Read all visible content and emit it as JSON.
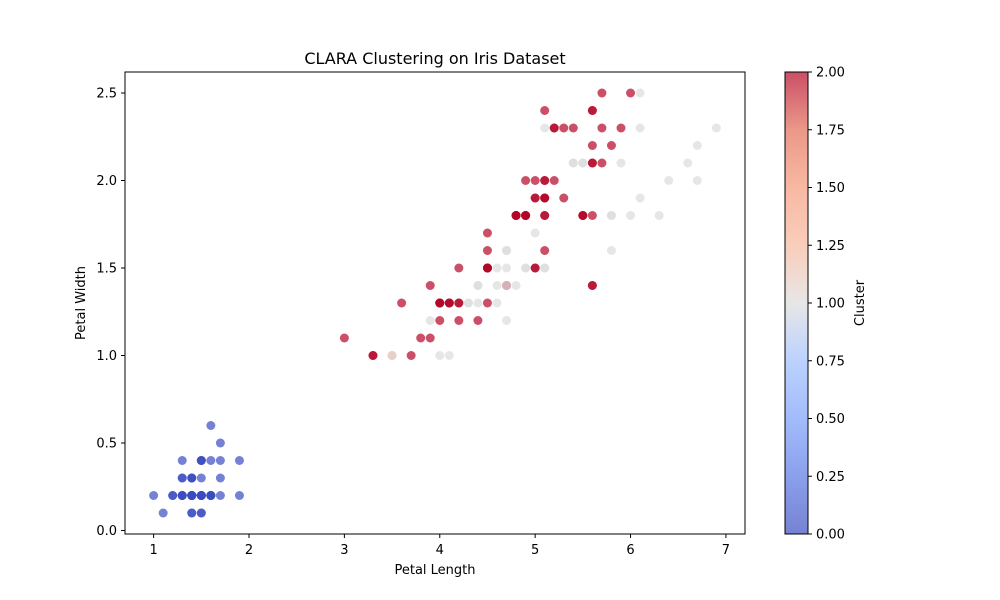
{
  "chart_data": {
    "type": "scatter",
    "title": "CLARA Clustering on Iris Dataset",
    "xlabel": "Petal Length",
    "ylabel": "Petal Width",
    "xlim": [
      0.7,
      7.2
    ],
    "ylim": [
      -0.02,
      2.62
    ],
    "xticks": [
      1,
      2,
      3,
      4,
      5,
      6,
      7
    ],
    "yticks": [
      0.0,
      0.5,
      1.0,
      1.5,
      2.0,
      2.5
    ],
    "grid": false,
    "colormap": "coolwarm",
    "colorbar": {
      "label": "Cluster",
      "range": [
        0.0,
        2.0
      ],
      "ticks": [
        0.0,
        0.25,
        0.5,
        0.75,
        1.0,
        1.25,
        1.5,
        1.75,
        2.0
      ],
      "tick_labels": [
        "0.00",
        "0.25",
        "0.50",
        "0.75",
        "1.00",
        "1.25",
        "1.50",
        "1.75",
        "2.00"
      ]
    },
    "marker_alpha": 0.7,
    "points": [
      [
        1.4,
        0.2,
        0
      ],
      [
        1.4,
        0.2,
        0
      ],
      [
        1.3,
        0.2,
        0
      ],
      [
        1.5,
        0.2,
        0
      ],
      [
        1.4,
        0.2,
        0
      ],
      [
        1.7,
        0.4,
        0
      ],
      [
        1.4,
        0.3,
        0
      ],
      [
        1.5,
        0.2,
        0
      ],
      [
        1.4,
        0.2,
        0
      ],
      [
        1.5,
        0.1,
        0
      ],
      [
        1.5,
        0.2,
        0
      ],
      [
        1.6,
        0.2,
        0
      ],
      [
        1.4,
        0.1,
        0
      ],
      [
        1.1,
        0.1,
        0
      ],
      [
        1.2,
        0.2,
        0
      ],
      [
        1.5,
        0.4,
        0
      ],
      [
        1.3,
        0.4,
        0
      ],
      [
        1.4,
        0.3,
        0
      ],
      [
        1.7,
        0.3,
        0
      ],
      [
        1.5,
        0.3,
        0
      ],
      [
        1.7,
        0.2,
        0
      ],
      [
        1.5,
        0.4,
        0
      ],
      [
        1.0,
        0.2,
        0
      ],
      [
        1.7,
        0.5,
        0
      ],
      [
        1.9,
        0.2,
        0
      ],
      [
        1.6,
        0.2,
        0
      ],
      [
        1.6,
        0.4,
        0
      ],
      [
        1.5,
        0.2,
        0
      ],
      [
        1.4,
        0.2,
        0
      ],
      [
        1.6,
        0.2,
        0
      ],
      [
        1.6,
        0.2,
        0
      ],
      [
        1.5,
        0.4,
        0
      ],
      [
        1.5,
        0.1,
        0
      ],
      [
        1.4,
        0.2,
        0
      ],
      [
        1.5,
        0.2,
        0
      ],
      [
        1.2,
        0.2,
        0
      ],
      [
        1.3,
        0.2,
        0
      ],
      [
        1.4,
        0.1,
        0
      ],
      [
        1.3,
        0.2,
        0
      ],
      [
        1.5,
        0.2,
        0
      ],
      [
        1.3,
        0.3,
        0
      ],
      [
        1.3,
        0.3,
        0
      ],
      [
        1.3,
        0.2,
        0
      ],
      [
        1.6,
        0.6,
        0
      ],
      [
        1.9,
        0.4,
        0
      ],
      [
        1.4,
        0.3,
        0
      ],
      [
        1.6,
        0.2,
        0
      ],
      [
        1.4,
        0.2,
        0
      ],
      [
        1.5,
        0.2,
        0
      ],
      [
        1.4,
        0.2,
        0
      ],
      [
        4.7,
        1.4,
        2
      ],
      [
        4.5,
        1.5,
        2
      ],
      [
        4.9,
        1.5,
        1
      ],
      [
        4.0,
        1.3,
        2
      ],
      [
        4.6,
        1.5,
        1
      ],
      [
        4.5,
        1.3,
        2
      ],
      [
        4.7,
        1.6,
        1
      ],
      [
        3.3,
        1.0,
        2
      ],
      [
        4.6,
        1.3,
        1
      ],
      [
        3.9,
        1.4,
        2
      ],
      [
        3.5,
        1.0,
        1.5
      ],
      [
        4.2,
        1.5,
        2
      ],
      [
        4.0,
        1.0,
        1
      ],
      [
        4.7,
        1.4,
        1
      ],
      [
        3.6,
        1.3,
        2
      ],
      [
        4.4,
        1.4,
        1
      ],
      [
        4.5,
        1.5,
        2
      ],
      [
        4.1,
        1.0,
        1
      ],
      [
        4.5,
        1.5,
        1
      ],
      [
        3.9,
        1.1,
        2
      ],
      [
        4.8,
        1.8,
        2
      ],
      [
        4.0,
        1.3,
        2
      ],
      [
        4.9,
        1.5,
        1
      ],
      [
        4.7,
        1.2,
        1
      ],
      [
        4.3,
        1.3,
        1
      ],
      [
        4.4,
        1.4,
        1
      ],
      [
        4.8,
        1.4,
        1
      ],
      [
        5.0,
        1.7,
        1
      ],
      [
        4.5,
        1.5,
        2
      ],
      [
        3.5,
        1.0,
        1
      ],
      [
        3.8,
        1.1,
        2
      ],
      [
        3.7,
        1.0,
        2
      ],
      [
        3.9,
        1.2,
        1
      ],
      [
        5.1,
        1.6,
        2
      ],
      [
        4.5,
        1.5,
        2
      ],
      [
        4.5,
        1.6,
        2
      ],
      [
        4.7,
        1.5,
        1
      ],
      [
        4.4,
        1.3,
        1
      ],
      [
        4.1,
        1.3,
        2
      ],
      [
        4.0,
        1.3,
        2
      ],
      [
        4.4,
        1.2,
        2
      ],
      [
        4.6,
        1.4,
        1
      ],
      [
        4.0,
        1.2,
        2
      ],
      [
        3.3,
        1.0,
        2
      ],
      [
        4.2,
        1.3,
        2
      ],
      [
        4.2,
        1.2,
        2
      ],
      [
        4.2,
        1.3,
        2
      ],
      [
        4.3,
        1.3,
        1
      ],
      [
        3.0,
        1.1,
        2
      ],
      [
        4.1,
        1.3,
        2
      ],
      [
        4.5,
        1.7,
        2
      ],
      [
        4.9,
        1.8,
        2
      ],
      [
        4.8,
        1.8,
        2
      ],
      [
        5.0,
        1.5,
        2
      ],
      [
        5.1,
        1.5,
        1
      ],
      [
        5.6,
        1.4,
        2
      ],
      [
        5.1,
        1.8,
        2
      ],
      [
        5.0,
        1.9,
        2
      ],
      [
        5.1,
        1.9,
        2
      ],
      [
        5.5,
        1.8,
        2
      ],
      [
        6.0,
        2.5,
        2
      ],
      [
        5.1,
        1.9,
        2
      ],
      [
        5.9,
        2.1,
        1
      ],
      [
        5.6,
        1.8,
        2
      ],
      [
        5.8,
        2.2,
        2
      ],
      [
        6.6,
        2.1,
        1
      ],
      [
        5.8,
        1.8,
        1
      ],
      [
        6.3,
        1.8,
        1
      ],
      [
        5.8,
        1.8,
        1
      ],
      [
        6.1,
        2.5,
        1
      ],
      [
        5.1,
        2.0,
        2
      ],
      [
        5.3,
        1.9,
        2
      ],
      [
        5.5,
        2.1,
        1
      ],
      [
        5.0,
        2.0,
        2
      ],
      [
        5.1,
        2.4,
        2
      ],
      [
        5.3,
        2.3,
        2
      ],
      [
        5.5,
        1.8,
        2
      ],
      [
        6.7,
        2.2,
        1
      ],
      [
        6.9,
        2.3,
        1
      ],
      [
        5.0,
        1.5,
        2
      ],
      [
        5.7,
        2.3,
        2
      ],
      [
        4.9,
        2.0,
        2
      ],
      [
        6.7,
        2.0,
        1
      ],
      [
        4.9,
        1.8,
        2
      ],
      [
        5.7,
        2.1,
        2
      ],
      [
        6.0,
        1.8,
        1
      ],
      [
        4.8,
        1.8,
        2
      ],
      [
        4.9,
        1.8,
        2
      ],
      [
        5.6,
        2.1,
        2
      ],
      [
        5.8,
        1.6,
        1
      ],
      [
        6.1,
        1.9,
        1
      ],
      [
        6.4,
        2.0,
        1
      ],
      [
        5.6,
        2.2,
        2
      ],
      [
        5.1,
        1.5,
        1
      ],
      [
        5.6,
        1.4,
        2
      ],
      [
        6.1,
        2.3,
        1
      ],
      [
        5.6,
        2.4,
        2
      ],
      [
        5.5,
        1.8,
        2
      ],
      [
        4.8,
        1.8,
        2
      ],
      [
        5.4,
        2.1,
        1
      ],
      [
        5.6,
        2.4,
        2
      ],
      [
        5.1,
        2.3,
        1
      ],
      [
        5.1,
        1.9,
        2
      ],
      [
        5.9,
        2.3,
        2
      ],
      [
        5.7,
        2.5,
        2
      ],
      [
        5.2,
        2.3,
        2
      ],
      [
        5.0,
        1.9,
        2
      ],
      [
        5.2,
        2.0,
        2
      ],
      [
        5.4,
        2.3,
        2
      ],
      [
        5.1,
        1.8,
        2
      ],
      [
        5.2,
        2.3,
        2
      ],
      [
        5.1,
        2.0,
        2
      ],
      [
        5.6,
        2.1,
        2
      ],
      [
        5.4,
        2.1,
        1
      ],
      [
        4.7,
        1.6,
        1
      ],
      [
        5.5,
        2.1,
        1
      ],
      [
        4.5,
        1.5,
        2
      ],
      [
        4.0,
        1.3,
        2
      ],
      [
        4.1,
        1.3,
        2
      ],
      [
        4.9,
        1.8,
        2
      ]
    ]
  }
}
